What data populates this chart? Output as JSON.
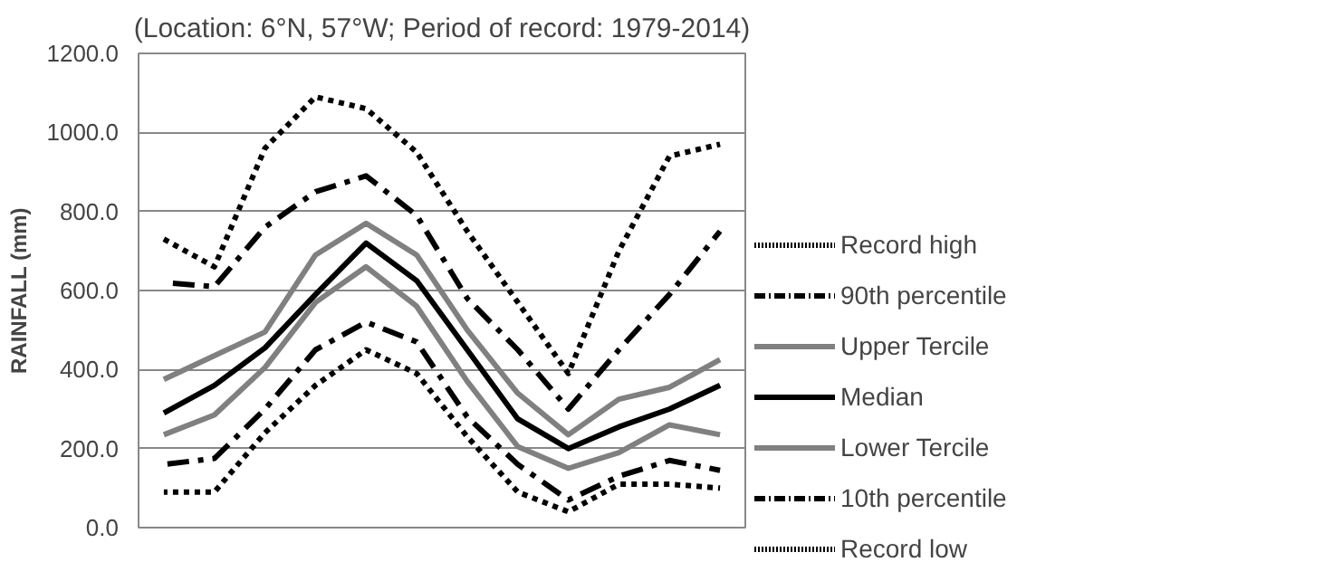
{
  "chart_data": {
    "type": "line",
    "title": "(Location: 6°N, 57°W; Period of record: 1979-2014)",
    "ylabel": "RAINFALL (mm)",
    "categories": [
      null,
      null,
      null,
      null,
      null,
      null,
      null,
      null,
      null,
      null,
      null,
      null
    ],
    "ylim": [
      0,
      1200
    ],
    "yticks": [
      {
        "value": 0,
        "label": "0.0"
      },
      {
        "value": 200,
        "label": "200.0"
      },
      {
        "value": 400,
        "label": "400.0"
      },
      {
        "value": 600,
        "label": "600.0"
      },
      {
        "value": 800,
        "label": "800.0"
      },
      {
        "value": 1000,
        "label": "1000.0"
      },
      {
        "value": 1200,
        "label": "1200.0"
      }
    ],
    "grid": "y",
    "legend": "right",
    "marker": "none",
    "series": [
      {
        "name": "Record high",
        "color": "#000000",
        "line_style": "dotted",
        "values": [
          730,
          660,
          960,
          1090,
          1060,
          950,
          750,
          570,
          390,
          700,
          940,
          970
        ]
      },
      {
        "name": "90th percentile",
        "color": "#000000",
        "line_style": "dashdot",
        "values": [
          620,
          610,
          760,
          850,
          890,
          790,
          580,
          450,
          300,
          450,
          590,
          750
        ]
      },
      {
        "name": "Upper Tercile",
        "color": "#808080",
        "line_style": "solid",
        "values": [
          375,
          435,
          495,
          690,
          770,
          690,
          500,
          340,
          235,
          325,
          355,
          425
        ]
      },
      {
        "name": "Median",
        "color": "#000000",
        "line_style": "solid",
        "values": [
          290,
          360,
          455,
          590,
          720,
          625,
          450,
          275,
          200,
          255,
          300,
          360
        ]
      },
      {
        "name": "Lower Tercile",
        "color": "#808080",
        "line_style": "solid",
        "values": [
          235,
          285,
          405,
          570,
          660,
          560,
          370,
          205,
          150,
          190,
          260,
          235
        ]
      },
      {
        "name": "10th percentile",
        "color": "#000000",
        "line_style": "dashdot",
        "values": [
          160,
          175,
          300,
          450,
          520,
          470,
          280,
          160,
          70,
          130,
          170,
          145
        ]
      },
      {
        "name": "Record low",
        "color": "#000000",
        "line_style": "dotted",
        "values": [
          90,
          90,
          240,
          360,
          450,
          390,
          230,
          90,
          40,
          110,
          110,
          100
        ]
      }
    ]
  }
}
